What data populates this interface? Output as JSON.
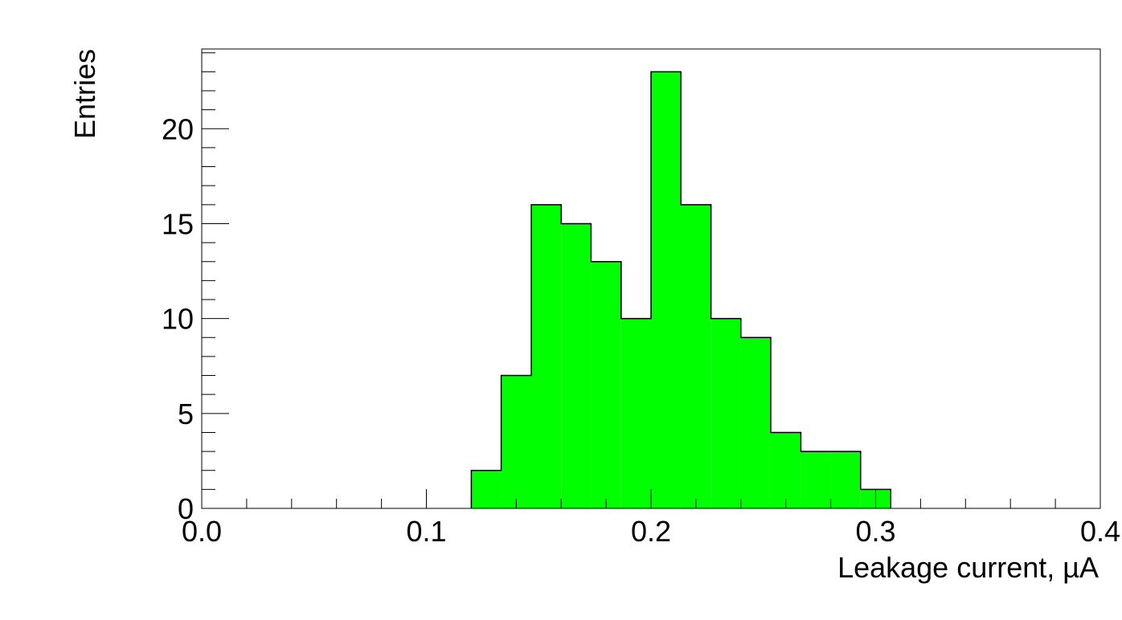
{
  "chart_data": {
    "type": "bar",
    "title": "",
    "xlabel": "Leakage current, µA",
    "ylabel": "Entries",
    "xlim": [
      0.0,
      0.4
    ],
    "ylim": [
      0,
      24.2
    ],
    "bin_edges": [
      0.12,
      0.1333,
      0.1467,
      0.16,
      0.1733,
      0.1867,
      0.2,
      0.2133,
      0.2267,
      0.24,
      0.2533,
      0.2667,
      0.28,
      0.2933,
      0.3067
    ],
    "values": [
      2,
      7,
      16,
      15,
      13,
      10,
      23,
      16,
      10,
      9,
      4,
      3,
      3,
      1
    ],
    "x_ticks": [
      {
        "value": 0.0,
        "label": "0.0"
      },
      {
        "value": 0.1,
        "label": "0.1"
      },
      {
        "value": 0.2,
        "label": "0.2"
      },
      {
        "value": 0.3,
        "label": "0.3"
      },
      {
        "value": 0.4,
        "label": "0.4"
      }
    ],
    "y_ticks": [
      {
        "value": 0,
        "label": "0"
      },
      {
        "value": 5,
        "label": "5"
      },
      {
        "value": 10,
        "label": "10"
      },
      {
        "value": 15,
        "label": "15"
      },
      {
        "value": 20,
        "label": "20"
      }
    ],
    "fill_color": "#00ff00",
    "edge_color": "#000000",
    "grid": false
  }
}
